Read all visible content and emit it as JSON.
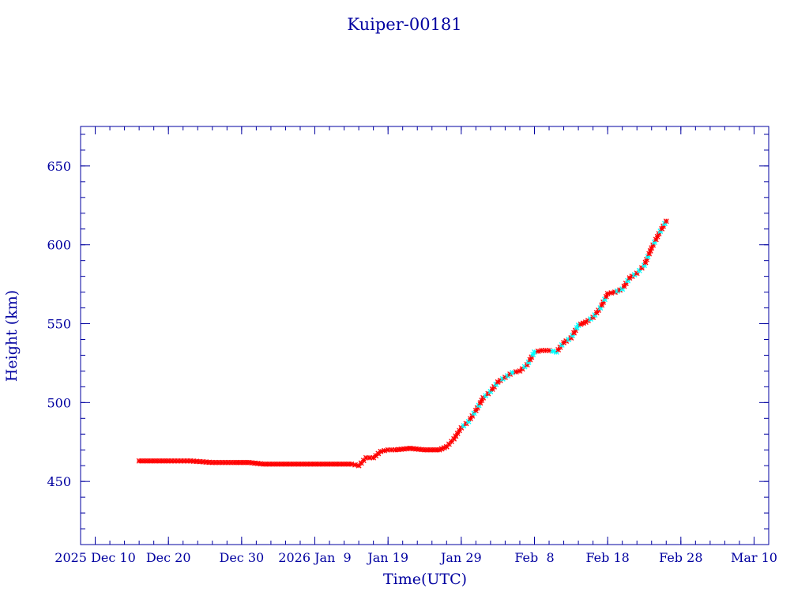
{
  "chart_data": {
    "type": "scatter",
    "title": "Kuiper-00181",
    "xlabel": "Time(UTC)",
    "ylabel": "Height (km)",
    "xlim": [
      "2025-12-08",
      "2026-03-12"
    ],
    "ylim": [
      410,
      675
    ],
    "grid": false,
    "colors": {
      "axes": "#0000a0",
      "marker_primary": "#ff0000",
      "marker_secondary": "#00ffff",
      "connect_line": "#000000"
    },
    "x_ticks": [
      {
        "date": "2025-12-10",
        "label": "2025 Dec 10"
      },
      {
        "date": "2025-12-20",
        "label": "Dec 20"
      },
      {
        "date": "2025-12-30",
        "label": "Dec 30"
      },
      {
        "date": "2026-01-09",
        "label": "2026 Jan  9"
      },
      {
        "date": "2026-01-19",
        "label": "Jan 19"
      },
      {
        "date": "2026-01-29",
        "label": "Jan 29"
      },
      {
        "date": "2026-02-08",
        "label": "Feb  8"
      },
      {
        "date": "2026-02-18",
        "label": "Feb 18"
      },
      {
        "date": "2026-02-28",
        "label": "Feb 28"
      },
      {
        "date": "2026-03-10",
        "label": "Mar 10"
      }
    ],
    "y_ticks": [
      450,
      500,
      550,
      600,
      650
    ],
    "series": [
      {
        "marker": "star",
        "x": [
          "2025-12-16",
          "2025-12-18",
          "2025-12-20",
          "2025-12-23",
          "2025-12-26",
          "2025-12-29",
          "2025-12-31",
          "2026-01-02",
          "2026-01-04",
          "2026-01-06",
          "2026-01-08",
          "2026-01-10",
          "2026-01-12",
          "2026-01-14",
          "2026-01-15",
          "2026-01-16",
          "2026-01-17",
          "2026-01-18",
          "2026-01-19",
          "2026-01-20",
          "2026-01-22",
          "2026-01-24",
          "2026-01-26",
          "2026-01-27",
          "2026-01-28",
          "2026-01-29",
          "2026-01-30",
          "2026-01-31",
          "2026-02-01",
          "2026-02-02",
          "2026-02-03",
          "2026-02-04",
          "2026-02-05",
          "2026-02-06",
          "2026-02-07",
          "2026-02-08",
          "2026-02-09",
          "2026-02-10",
          "2026-02-11",
          "2026-02-12",
          "2026-02-13",
          "2026-02-14",
          "2026-02-15",
          "2026-02-16",
          "2026-02-17",
          "2026-02-18",
          "2026-02-19",
          "2026-02-20",
          "2026-02-21",
          "2026-02-22",
          "2026-02-23",
          "2026-02-24",
          "2026-02-25",
          "2026-02-26"
        ],
        "y": [
          463,
          463,
          463,
          463,
          462,
          462,
          462,
          461,
          461,
          461,
          461,
          461,
          461,
          461,
          460,
          465,
          465,
          469,
          470,
          470,
          471,
          470,
          470,
          472,
          477,
          484,
          488,
          495,
          503,
          507,
          513,
          516,
          519,
          520,
          524,
          532,
          533,
          533,
          532,
          538,
          541,
          549,
          551,
          554,
          560,
          569,
          570,
          572,
          579,
          582,
          587,
          598,
          607,
          615
        ]
      }
    ]
  }
}
